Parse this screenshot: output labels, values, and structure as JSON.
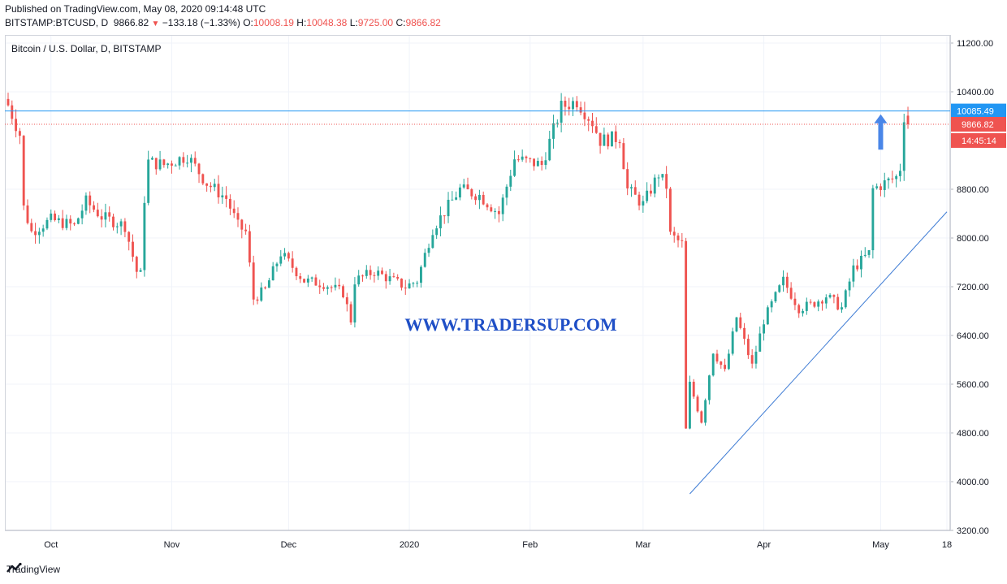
{
  "header": {
    "published": "Published on TradingView.com, May 08, 2020 09:14:48 UTC",
    "symbol": "BITSTAMP:BTCUSD, D",
    "last": "9866.82",
    "change_arrow": "▼",
    "change": "−133.18 (−1.33%)",
    "o_label": "O:",
    "o": "10008.19",
    "h_label": "H:",
    "h": "10048.38",
    "l_label": "L:",
    "l": "9725.00",
    "c_label": "C:",
    "c": "9866.82"
  },
  "chart_title": "Bitcoin / U.S. Dollar, D, BITSTAMP",
  "watermark": "WWW.TRADERSUP.COM",
  "footer": {
    "brand": "TradingView",
    "icon": "tradingview-logo-icon"
  },
  "colors": {
    "up": "#26a69a",
    "down": "#ef5350",
    "hline": "#2196f3",
    "trend": "#3d7bd4",
    "watermark": "#1f4fc6",
    "arrow": "#4a86e8"
  },
  "chart_data": {
    "type": "candlestick",
    "title": "Bitcoin / U.S. Dollar, D, BITSTAMP",
    "ylim": [
      3200,
      11200
    ],
    "y_ticks": [
      "11200.00",
      "10400.00",
      "8800.00",
      "8000.00",
      "7200.00",
      "6400.00",
      "5600.00",
      "4800.00",
      "4000.00",
      "3200.00"
    ],
    "x_ticks": [
      {
        "label": "Oct",
        "date": "2019-10-01"
      },
      {
        "label": "Nov",
        "date": "2019-11-01"
      },
      {
        "label": "Dec",
        "date": "2019-12-01"
      },
      {
        "label": "2020",
        "date": "2020-01-01"
      },
      {
        "label": "Feb",
        "date": "2020-02-01"
      },
      {
        "label": "Mar",
        "date": "2020-03-01"
      },
      {
        "label": "Apr",
        "date": "2020-04-01"
      },
      {
        "label": "May",
        "date": "2020-05-01"
      },
      {
        "label": "18",
        "date": "2020-05-18"
      }
    ],
    "x_range": [
      "2019-09-20",
      "2020-05-18"
    ],
    "horizontal_line": {
      "value": 10085.49,
      "label": "10085.49"
    },
    "last_price": {
      "value": 9866.82,
      "label": "9866.82"
    },
    "countdown": "14:45:14",
    "trendline": [
      {
        "date": "2020-03-13",
        "value": 3800
      },
      {
        "date": "2020-05-18",
        "value": 8430
      }
    ],
    "up_arrow": {
      "date": "2020-05-01",
      "from": 9450,
      "to": 10030
    },
    "grid": true,
    "keypoints": [
      {
        "date": "2019-09-20",
        "close": 10180
      },
      {
        "date": "2019-09-23",
        "close": 9700
      },
      {
        "date": "2019-09-24",
        "close": 8500
      },
      {
        "date": "2019-09-26",
        "close": 8100
      },
      {
        "date": "2019-10-01",
        "close": 8300
      },
      {
        "date": "2019-10-07",
        "close": 8200
      },
      {
        "date": "2019-10-10",
        "close": 8600
      },
      {
        "date": "2019-10-14",
        "close": 8350
      },
      {
        "date": "2019-10-20",
        "close": 8200
      },
      {
        "date": "2019-10-23",
        "close": 7450
      },
      {
        "date": "2019-10-24",
        "close": 7400
      },
      {
        "date": "2019-10-25",
        "close": 8650
      },
      {
        "date": "2019-10-26",
        "close": 9250
      },
      {
        "date": "2019-10-30",
        "close": 9200
      },
      {
        "date": "2019-11-05",
        "close": 9350
      },
      {
        "date": "2019-11-10",
        "close": 8900
      },
      {
        "date": "2019-11-15",
        "close": 8650
      },
      {
        "date": "2019-11-18",
        "close": 8200
      },
      {
        "date": "2019-11-20",
        "close": 8100
      },
      {
        "date": "2019-11-22",
        "close": 7000
      },
      {
        "date": "2019-11-25",
        "close": 7150
      },
      {
        "date": "2019-11-29",
        "close": 7750
      },
      {
        "date": "2019-12-05",
        "close": 7300
      },
      {
        "date": "2019-12-10",
        "close": 7250
      },
      {
        "date": "2019-12-15",
        "close": 7100
      },
      {
        "date": "2019-12-17",
        "close": 6650
      },
      {
        "date": "2019-12-18",
        "close": 7300
      },
      {
        "date": "2019-12-23",
        "close": 7450
      },
      {
        "date": "2019-12-31",
        "close": 7200
      },
      {
        "date": "2020-01-03",
        "close": 7300
      },
      {
        "date": "2020-01-07",
        "close": 8150
      },
      {
        "date": "2020-01-14",
        "close": 8800
      },
      {
        "date": "2020-01-19",
        "close": 8700
      },
      {
        "date": "2020-01-24",
        "close": 8400
      },
      {
        "date": "2020-01-28",
        "close": 9300
      },
      {
        "date": "2020-02-04",
        "close": 9200
      },
      {
        "date": "2020-02-09",
        "close": 10150
      },
      {
        "date": "2020-02-13",
        "close": 10250
      },
      {
        "date": "2020-02-17",
        "close": 9900
      },
      {
        "date": "2020-02-19",
        "close": 9600
      },
      {
        "date": "2020-02-24",
        "close": 9650
      },
      {
        "date": "2020-02-26",
        "close": 8800
      },
      {
        "date": "2020-03-01",
        "close": 8550
      },
      {
        "date": "2020-03-05",
        "close": 9050
      },
      {
        "date": "2020-03-07",
        "close": 8850
      },
      {
        "date": "2020-03-08",
        "close": 8050
      },
      {
        "date": "2020-03-11",
        "close": 7900
      },
      {
        "date": "2020-03-12",
        "close": 4850
      },
      {
        "date": "2020-03-13",
        "close": 5600
      },
      {
        "date": "2020-03-16",
        "close": 5000
      },
      {
        "date": "2020-03-19",
        "close": 6150
      },
      {
        "date": "2020-03-22",
        "close": 5800
      },
      {
        "date": "2020-03-25",
        "close": 6700
      },
      {
        "date": "2020-03-29",
        "close": 5900
      },
      {
        "date": "2020-04-01",
        "close": 6650
      },
      {
        "date": "2020-04-06",
        "close": 7300
      },
      {
        "date": "2020-04-10",
        "close": 6850
      },
      {
        "date": "2020-04-13",
        "close": 6900
      },
      {
        "date": "2020-04-17",
        "close": 7050
      },
      {
        "date": "2020-04-21",
        "close": 6850
      },
      {
        "date": "2020-04-24",
        "close": 7500
      },
      {
        "date": "2020-04-28",
        "close": 7750
      },
      {
        "date": "2020-04-29",
        "close": 8800
      },
      {
        "date": "2020-05-02",
        "close": 8900
      },
      {
        "date": "2020-05-05",
        "close": 9000
      },
      {
        "date": "2020-05-06",
        "close": 9150
      },
      {
        "date": "2020-05-07",
        "close": 10000
      },
      {
        "date": "2020-05-08",
        "close": 9866.82
      }
    ]
  }
}
